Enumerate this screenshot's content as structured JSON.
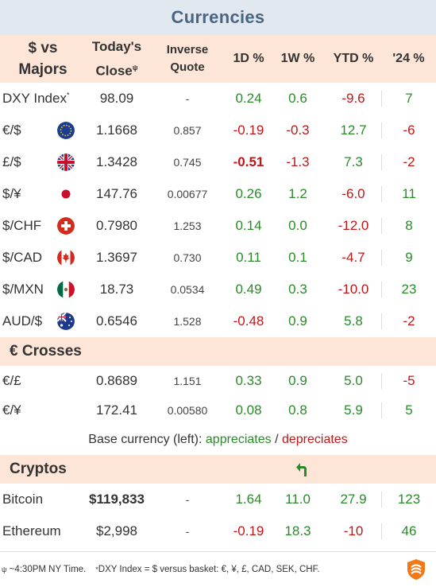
{
  "title": "Currencies",
  "header": {
    "col1a": "$ vs",
    "col1b": "Majors",
    "col2a": "Today's",
    "col2b": "Close",
    "col2_mark": "ψ",
    "col3a": "Inverse",
    "col3b": "Quote",
    "col4": "1D %",
    "col5": "1W %",
    "col6": "YTD %",
    "col7": "'24 %"
  },
  "majors": [
    {
      "name": "DXY Index",
      "mark": "*",
      "flag": "none",
      "close": "98.09",
      "inverse": "-",
      "d1": "0.24",
      "w1": "0.6",
      "ytd": "-9.6",
      "y24": "7"
    },
    {
      "name": "€/$",
      "flag": "eu-flag-icon",
      "close": "1.1668",
      "inverse": "0.857",
      "d1": "-0.19",
      "w1": "-0.3",
      "ytd": "12.7",
      "y24": "-6"
    },
    {
      "name": "£/$",
      "flag": "uk-flag-icon",
      "close": "1.3428",
      "inverse": "0.745",
      "d1": "-0.51",
      "w1": "-1.3",
      "ytd": "7.3",
      "y24": "-2"
    },
    {
      "name": "$/¥",
      "flag": "japan-flag-icon",
      "close": "147.76",
      "inverse": "0.00677",
      "d1": "0.26",
      "w1": "1.2",
      "ytd": "-6.0",
      "y24": "11"
    },
    {
      "name": "$/CHF",
      "flag": "swiss-flag-icon",
      "close": "0.7980",
      "inverse": "1.253",
      "d1": "0.14",
      "w1": "0.0",
      "ytd": "-12.0",
      "y24": "8"
    },
    {
      "name": "$/CAD",
      "flag": "canada-flag-icon",
      "close": "1.3697",
      "inverse": "0.730",
      "d1": "0.11",
      "w1": "0.1",
      "ytd": "-4.7",
      "y24": "9"
    },
    {
      "name": "$/MXN",
      "flag": "mexico-flag-icon",
      "close": "18.73",
      "inverse": "0.0534",
      "d1": "0.49",
      "w1": "0.3",
      "ytd": "-10.0",
      "y24": "23"
    },
    {
      "name": "AUD/$",
      "flag": "australia-flag-icon",
      "close": "0.6546",
      "inverse": "1.528",
      "d1": "-0.48",
      "w1": "0.9",
      "ytd": "5.8",
      "y24": "-2"
    }
  ],
  "crosses_title": "€ Crosses",
  "crosses": [
    {
      "name": "€/£",
      "close": "0.8689",
      "inverse": "1.151",
      "d1": "0.33",
      "w1": "0.9",
      "ytd": "5.0",
      "y24": "-5"
    },
    {
      "name": "€/¥",
      "close": "172.41",
      "inverse": "0.00580",
      "d1": "0.08",
      "w1": "0.8",
      "ytd": "5.9",
      "y24": "5"
    }
  ],
  "legend": {
    "prefix": "Base currency (left): ",
    "appreciates": "appreciates",
    "sep": " / ",
    "depreciates": "depreciates"
  },
  "cryptos_title": "Cryptos",
  "cryptos": [
    {
      "name": "Bitcoin",
      "close": "$119,833",
      "inverse": "-",
      "d1": "1.64",
      "w1": "11.0",
      "ytd": "27.9",
      "y24": "123"
    },
    {
      "name": "Ethereum",
      "close": "$2,998",
      "inverse": "-",
      "d1": "-0.19",
      "w1": "18.3",
      "ytd": "-10",
      "y24": "46"
    }
  ],
  "footer": {
    "mark1": "ψ",
    "note1": " ~4:30PM NY Time.",
    "mark2": "*",
    "note2": "DXY Index = $ versus basket: €, ¥, £, CAD, SEK, CHF."
  },
  "colors": {
    "positive": "#2a8a2a",
    "negative": "#c01818",
    "header_bg": "#fde6d8",
    "title_bg": "#e1e8f0",
    "title_text": "#4a6582",
    "logo": "#f07a1a"
  }
}
